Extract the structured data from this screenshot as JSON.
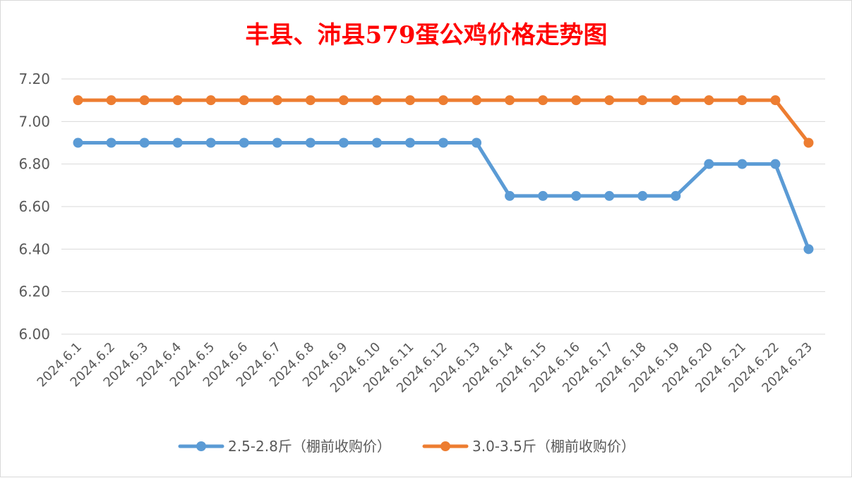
{
  "chart_data": {
    "type": "line",
    "title": "丰县、沛县579蛋公鸡价格走势图",
    "title_color": "#ff0000",
    "xlabel": "",
    "ylabel": "",
    "ylim": [
      6.0,
      7.2
    ],
    "yticks": [
      "6.00",
      "6.20",
      "6.40",
      "6.60",
      "6.80",
      "7.00",
      "7.20"
    ],
    "ytick_values": [
      6.0,
      6.2,
      6.4,
      6.6,
      6.8,
      7.0,
      7.2
    ],
    "grid": true,
    "legend_position": "bottom",
    "categories": [
      "2024.6.1",
      "2024.6.2",
      "2024.6.3",
      "2024.6.4",
      "2024.6.5",
      "2024.6.6",
      "2024.6.7",
      "2024.6.8",
      "2024.6.9",
      "2024.6.10",
      "2024.6.11",
      "2024.6.12",
      "2024.6.13",
      "2024.6.14",
      "2024.6.15",
      "2024.6.16",
      "2024.6.17",
      "2024.6.18",
      "2024.6.19",
      "2024.6.20",
      "2024.6.21",
      "2024.6.22",
      "2024.6.23"
    ],
    "series": [
      {
        "name": "2.5-2.8斤（棚前收购价）",
        "color": "#5b9bd5",
        "values": [
          6.9,
          6.9,
          6.9,
          6.9,
          6.9,
          6.9,
          6.9,
          6.9,
          6.9,
          6.9,
          6.9,
          6.9,
          6.9,
          6.65,
          6.65,
          6.65,
          6.65,
          6.65,
          6.65,
          6.8,
          6.8,
          6.8,
          6.4
        ]
      },
      {
        "name": "3.0-3.5斤（棚前收购价）",
        "color": "#ed7d31",
        "values": [
          7.1,
          7.1,
          7.1,
          7.1,
          7.1,
          7.1,
          7.1,
          7.1,
          7.1,
          7.1,
          7.1,
          7.1,
          7.1,
          7.1,
          7.1,
          7.1,
          7.1,
          7.1,
          7.1,
          7.1,
          7.1,
          7.1,
          6.9
        ]
      }
    ]
  }
}
